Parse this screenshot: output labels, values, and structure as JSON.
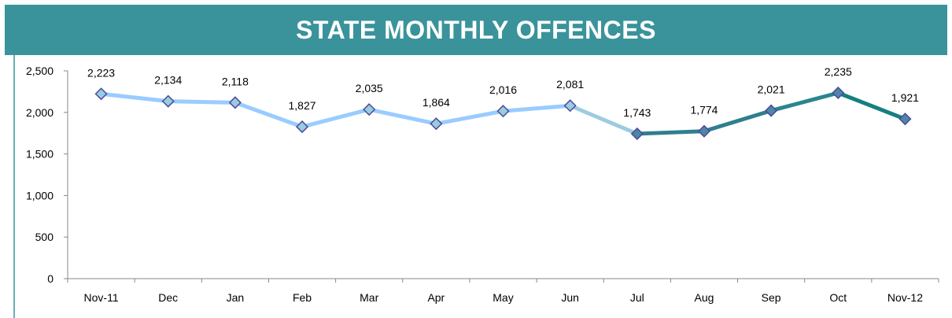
{
  "chart_data": {
    "type": "line",
    "title": "STATE MONTHLY OFFENCES",
    "categories": [
      "Nov-11",
      "Dec",
      "Jan",
      "Feb",
      "Mar",
      "Apr",
      "May",
      "Jun",
      "Jul",
      "Aug",
      "Sep",
      "Oct",
      "Nov-12"
    ],
    "series": [
      {
        "name": "Offences",
        "values": [
          2223,
          2134,
          2118,
          1827,
          2035,
          1864,
          2016,
          2081,
          1743,
          1774,
          2021,
          2235,
          1921
        ],
        "value_labels": [
          "2,223",
          "2,134",
          "2,118",
          "1,827",
          "2,035",
          "1,864",
          "2,016",
          "2,081",
          "1,743",
          "1,774",
          "2,021",
          "2,235",
          "1,921"
        ],
        "segment_colors": [
          "#99ccff",
          "#99ccff",
          "#99ccff",
          "#99ccff",
          "#99ccff",
          "#99ccff",
          "#99ccff",
          "#9dcbe0",
          "#2f7f8e",
          "#2f7f8e",
          "#2a8590",
          "#13807f"
        ],
        "marker_colors": [
          "#99cce0",
          "#99cce0",
          "#99cce0",
          "#99cce0",
          "#99cce0",
          "#99cce0",
          "#99cce0",
          "#99cce0",
          "#4f85a8",
          "#4f85a8",
          "#4f85a8",
          "#4f85a8",
          "#4f85a8"
        ]
      }
    ],
    "ylim": [
      0,
      2500
    ],
    "yticks": [
      0,
      500,
      {
        "value": 1000,
        "label": "1,000"
      },
      {
        "value": 1500,
        "label": "1,500"
      },
      {
        "value": 2000,
        "label": "2,000"
      },
      {
        "value": 2500,
        "label": "2,500"
      }
    ],
    "grid": false
  }
}
